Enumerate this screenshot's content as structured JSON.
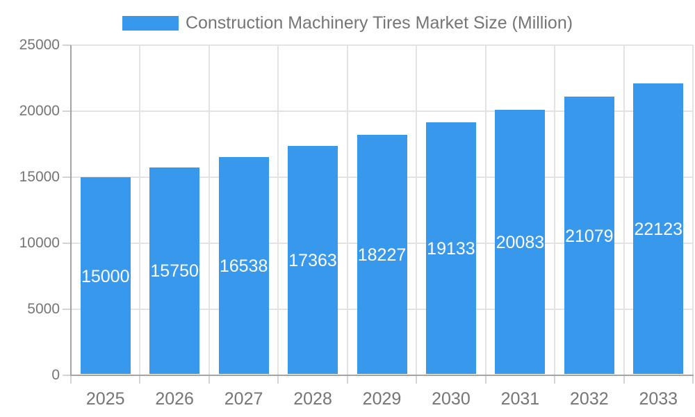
{
  "chart_data": {
    "type": "bar",
    "title": "Construction Machinery Tires Market Size (Million)",
    "legend_label": "Construction Machinery Tires Market Size (Million)",
    "legend_position": "top",
    "xlabel": "",
    "ylabel": "",
    "categories": [
      "2025",
      "2026",
      "2027",
      "2028",
      "2029",
      "2030",
      "2031",
      "2032",
      "2033"
    ],
    "values": [
      15000,
      15750,
      16538,
      17363,
      18227,
      19133,
      20083,
      21079,
      22123
    ],
    "data_labels": [
      "15000",
      "15750",
      "16538",
      "17363",
      "18227",
      "19133",
      "20083",
      "21079",
      "22123"
    ],
    "ylim": [
      0,
      25000
    ],
    "y_ticks": [
      0,
      5000,
      10000,
      15000,
      20000,
      25000
    ],
    "y_tick_labels": [
      "0",
      "5000",
      "10000",
      "15000",
      "20000",
      "25000"
    ],
    "grid": true,
    "colors": {
      "bar": "#3898ec",
      "grid": "#e3e3e3",
      "axis": "#a3a3a3",
      "tick": "#d4d4d4",
      "tick_label": "#757575",
      "data_label": "#ffffff",
      "background": "#ffffff"
    }
  }
}
